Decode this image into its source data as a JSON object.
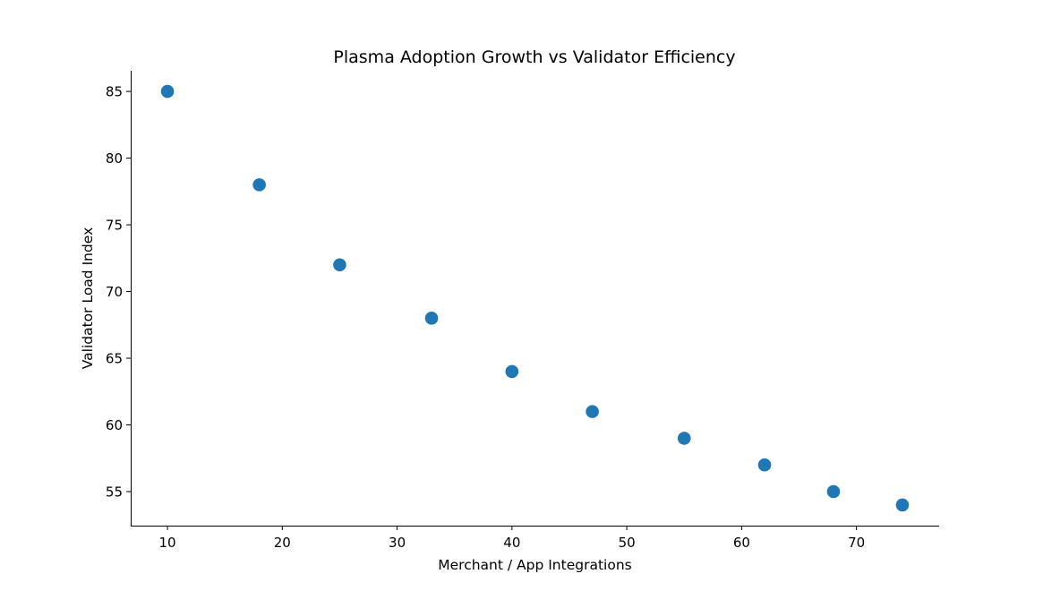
{
  "chart_data": {
    "type": "scatter",
    "title": "Plasma Adoption Growth vs Validator Efficiency",
    "xlabel": "Merchant / App Integrations",
    "ylabel": "Validator Load Index",
    "xlim": [
      6.8,
      77.2
    ],
    "ylim": [
      52.45,
      86.55
    ],
    "xticks": [
      10,
      20,
      30,
      40,
      50,
      60,
      70
    ],
    "yticks": [
      55,
      60,
      65,
      70,
      75,
      80,
      85
    ],
    "xtick_labels": [
      "10",
      "20",
      "30",
      "40",
      "50",
      "60",
      "70"
    ],
    "ytick_labels": [
      "55",
      "60",
      "65",
      "70",
      "75",
      "80",
      "85"
    ],
    "grid": false,
    "legend": null,
    "series": [
      {
        "name": "",
        "color": "#1f77b4",
        "x": [
          10,
          18,
          25,
          33,
          40,
          47,
          55,
          62,
          68,
          74
        ],
        "y": [
          85,
          78,
          72,
          68,
          64,
          61,
          59,
          57,
          55,
          54
        ]
      }
    ]
  }
}
